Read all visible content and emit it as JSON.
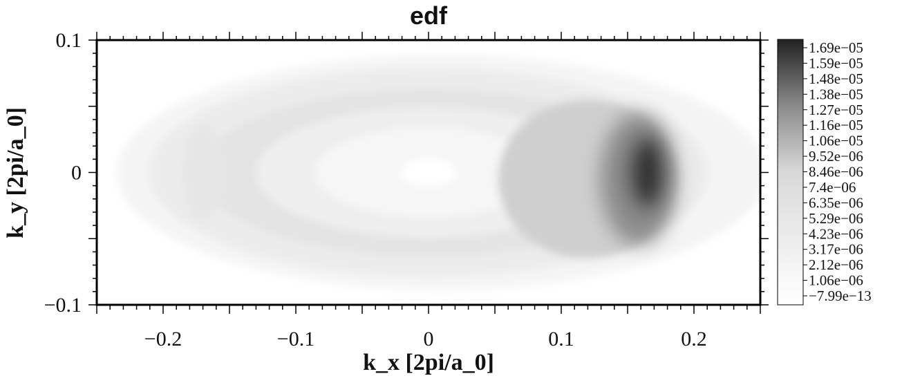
{
  "chart_data": {
    "type": "heatmap",
    "title": "edf",
    "xlabel": "k_x [2pi/a_0]",
    "ylabel": "k_y [2pi/a_0]",
    "xlim": [
      -0.25,
      0.25
    ],
    "ylim": [
      -0.1,
      0.1
    ],
    "x_ticks": [
      {
        "value": -0.2,
        "label": "−0.2"
      },
      {
        "value": -0.1,
        "label": "−0.1"
      },
      {
        "value": 0,
        "label": "0"
      },
      {
        "value": 0.1,
        "label": "0.1"
      },
      {
        "value": 0.2,
        "label": "0.2"
      }
    ],
    "y_ticks": [
      {
        "value": 0.1,
        "label": "0.1"
      },
      {
        "value": 0,
        "label": "0"
      },
      {
        "value": -0.1,
        "label": "−0.1"
      }
    ],
    "colorbar": {
      "min": -7.99e-13,
      "max": 1.7e-05,
      "labels": [
        "1.69e−05",
        "1.59e−05",
        "1.48e−05",
        "1.38e−05",
        "1.27e−05",
        "1.16e−05",
        "1.06e−05",
        "9.52e−06",
        "8.46e−06",
        "7.4e−06",
        "6.35e−06",
        "5.29e−06",
        "4.23e−06",
        "3.17e−06",
        "2.12e−06",
        "1.06e−06",
        "−7.99e−13"
      ],
      "colormap": "grayscale",
      "low_color": "#ffffff",
      "high_color": "#1f1f1f"
    },
    "features": [
      {
        "description": "peak",
        "kx": 0.165,
        "ky": 0.0,
        "value": 1.7e-05
      },
      {
        "description": "minimum near center",
        "kx": 0.0,
        "ky": 0.0,
        "value": 0
      }
    ]
  }
}
